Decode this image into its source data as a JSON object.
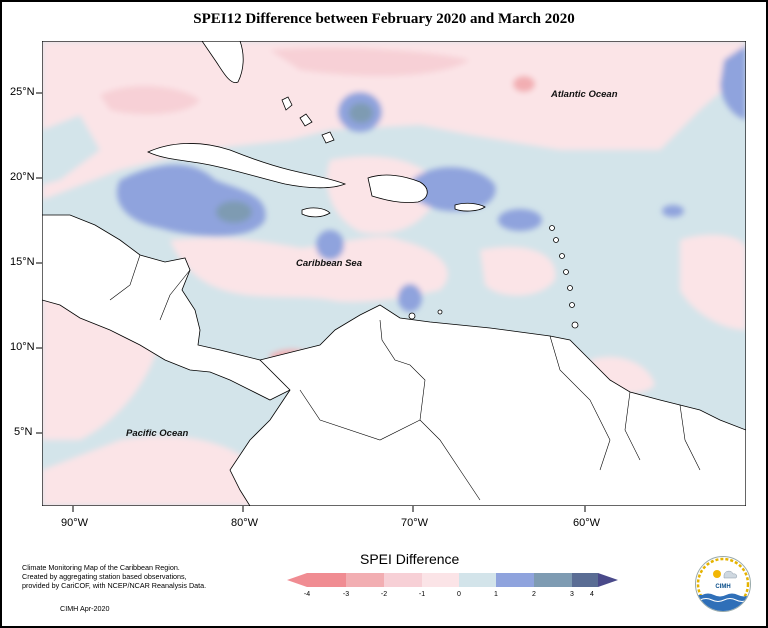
{
  "title": "SPEI12 Difference between February 2020 and March 2020",
  "map": {
    "lat_labels": [
      "25°N",
      "20°N",
      "15°N",
      "10°N",
      "5°N"
    ],
    "lon_labels": [
      "90°W",
      "80°W",
      "70°W",
      "60°W"
    ],
    "region_labels": {
      "atlantic": "Atlantic Ocean",
      "caribbean": "Caribbean Sea",
      "pacific": "Pacific Ocean"
    }
  },
  "legend": {
    "title": "SPEI Difference",
    "ticks": [
      "-4",
      "-3",
      "-2",
      "-1",
      "0",
      "1",
      "2",
      "3",
      "4"
    ],
    "colors": [
      "#f08c92",
      "#f2aeb2",
      "#f7d0d6",
      "#fbe4e7",
      "#d3e4ea",
      "#8fa3dd",
      "#7e9bb2",
      "#5a6d94"
    ]
  },
  "footnote": {
    "line1": "Climate Monitoring Map of the Caribbean Region.",
    "line2": "Created by aggregating station based observations,",
    "line3": "provided by CariCOF, with NCEP/NCAR Reanalysis Data.",
    "credit": "CIMH Apr-2020"
  },
  "logo": {
    "text": "CIMH"
  }
}
